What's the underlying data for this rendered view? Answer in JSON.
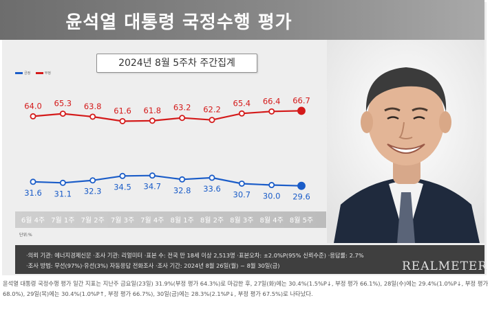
{
  "header": {
    "title": "윤석열 대통령 국정수행 평가"
  },
  "subtitle": "2024년 8월 5주차 주간집계",
  "legend": [
    {
      "label": "긍정",
      "color": "#1a5cc8"
    },
    {
      "label": "부정",
      "color": "#d41a1a"
    }
  ],
  "unit_label": "단위:%",
  "footer": {
    "line1": "·의뢰 기관: 에너지경제신문 ·조사 기관: 리얼미터 ·표본 수: 전국 만 18세 이상 2,513명 ·표본오차: ±2.0%P(95% 신뢰수준) ·응답률: 2.7%",
    "line2": "·조사 방법: 무선(97%)·유선(3%) 자동응답 전화조사 ·조사 기간: 2024년 8월 26일(월) ~ 8월 30일(금)"
  },
  "brand": "REALMETER",
  "bottom_note": "윤석열 대통령 국정수행 평가 일간 지표는 지난주 금요일(23일) 31.9%(부정 평가 64.3%)로 마감한 후, 27일(화)에는 30.4%(1.5%P↓, 부정 평가 66.1%), 28일(수)에는 29.4%(1.0%P↓, 부정 평가 68.0%), 29일(목)에는 30.4%(1.0%P↑, 부정 평가 66.7%), 30일(금)에는 28.3%(2.1%P↓, 부정 평가 67.5%)로 나타났다.",
  "chart_data": {
    "type": "line",
    "categories": [
      "6월 4주",
      "7월 1주",
      "7월 2주",
      "7월 3주",
      "7월 4주",
      "8월 1주",
      "8월 2주",
      "8월 3주",
      "8월 4주",
      "8월 5주"
    ],
    "series": [
      {
        "name": "부정",
        "color": "#d41a1a",
        "values": [
          64.0,
          65.3,
          63.8,
          61.6,
          61.8,
          63.2,
          62.2,
          65.4,
          66.4,
          66.7
        ],
        "labels": [
          "64.0",
          "65.3",
          "63.8",
          "61.6",
          "61.8",
          "63.2",
          "62.2",
          "65.4",
          "66.4",
          "66.7"
        ]
      },
      {
        "name": "긍정",
        "color": "#1a5cc8",
        "values": [
          31.6,
          31.1,
          32.3,
          34.5,
          34.7,
          32.8,
          33.6,
          30.7,
          30.0,
          29.6
        ],
        "labels": [
          "31.6",
          "31.1",
          "32.3",
          "34.5",
          "34.7",
          "32.8",
          "33.6",
          "30.7",
          "30.0",
          "29.6"
        ]
      }
    ],
    "title": "윤석열 대통령 국정수행 평가",
    "subtitle": "2024년 8월 5주차 주간집계",
    "grid": false,
    "legend_position": "top-left"
  }
}
